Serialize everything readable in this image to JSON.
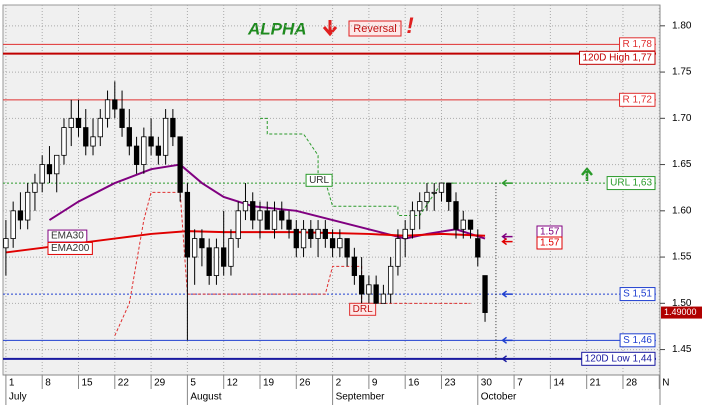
{
  "chart_data": {
    "type": "candlestick",
    "title": "ALPHA",
    "annotations": {
      "signal": "Reversal",
      "alert": "!"
    },
    "open": [
      1.56,
      1.57,
      1.6,
      1.59,
      1.62,
      1.63,
      1.65,
      1.64,
      1.66,
      1.69,
      1.7,
      1.69,
      1.67,
      1.68,
      1.7,
      1.72,
      1.71,
      1.69,
      1.67,
      1.65,
      1.68,
      1.67,
      1.66,
      1.7,
      1.68,
      1.62,
      1.55,
      1.57,
      1.56,
      1.53,
      1.56,
      1.54,
      1.57,
      1.6,
      1.61,
      1.59,
      1.6,
      1.58,
      1.6,
      1.59,
      1.58,
      1.56,
      1.58,
      1.57,
      1.58,
      1.57,
      1.56,
      1.57,
      1.55,
      1.53,
      1.51,
      1.52,
      1.5,
      1.51,
      1.54,
      1.57,
      1.58,
      1.6,
      1.61,
      1.62,
      1.62,
      1.63,
      1.61,
      1.58,
      1.59,
      1.57,
      1.53
    ],
    "high": [
      1.59,
      1.61,
      1.62,
      1.63,
      1.64,
      1.66,
      1.67,
      1.66,
      1.7,
      1.72,
      1.72,
      1.71,
      1.7,
      1.71,
      1.73,
      1.74,
      1.73,
      1.71,
      1.68,
      1.69,
      1.7,
      1.68,
      1.71,
      1.71,
      1.68,
      1.63,
      1.58,
      1.58,
      1.57,
      1.57,
      1.6,
      1.58,
      1.61,
      1.63,
      1.62,
      1.61,
      1.61,
      1.61,
      1.61,
      1.6,
      1.59,
      1.59,
      1.59,
      1.59,
      1.59,
      1.58,
      1.58,
      1.57,
      1.56,
      1.55,
      1.53,
      1.53,
      1.52,
      1.55,
      1.58,
      1.59,
      1.61,
      1.62,
      1.63,
      1.63,
      1.63,
      1.63,
      1.62,
      1.6,
      1.59,
      1.58,
      1.53
    ],
    "low": [
      1.53,
      1.56,
      1.58,
      1.58,
      1.6,
      1.62,
      1.63,
      1.62,
      1.65,
      1.67,
      1.68,
      1.66,
      1.66,
      1.67,
      1.69,
      1.7,
      1.68,
      1.66,
      1.64,
      1.64,
      1.66,
      1.65,
      1.65,
      1.67,
      1.61,
      1.46,
      1.52,
      1.54,
      1.52,
      1.52,
      1.53,
      1.53,
      1.56,
      1.59,
      1.58,
      1.57,
      1.58,
      1.57,
      1.58,
      1.57,
      1.55,
      1.55,
      1.56,
      1.55,
      1.56,
      1.55,
      1.55,
      1.54,
      1.52,
      1.5,
      1.5,
      1.5,
      1.5,
      1.5,
      1.53,
      1.55,
      1.57,
      1.58,
      1.6,
      1.6,
      1.61,
      1.6,
      1.57,
      1.57,
      1.57,
      1.54,
      1.48
    ],
    "close": [
      1.57,
      1.6,
      1.59,
      1.62,
      1.63,
      1.65,
      1.64,
      1.66,
      1.69,
      1.7,
      1.69,
      1.67,
      1.68,
      1.7,
      1.72,
      1.71,
      1.69,
      1.67,
      1.65,
      1.68,
      1.67,
      1.66,
      1.7,
      1.68,
      1.62,
      1.55,
      1.57,
      1.56,
      1.53,
      1.56,
      1.54,
      1.57,
      1.6,
      1.61,
      1.59,
      1.6,
      1.58,
      1.6,
      1.59,
      1.58,
      1.56,
      1.58,
      1.57,
      1.58,
      1.57,
      1.56,
      1.57,
      1.55,
      1.53,
      1.51,
      1.52,
      1.5,
      1.51,
      1.54,
      1.57,
      1.58,
      1.6,
      1.61,
      1.62,
      1.62,
      1.63,
      1.61,
      1.58,
      1.59,
      1.58,
      1.55,
      1.49
    ],
    "series": [
      {
        "name": "EMA30",
        "color": "#800080",
        "style": "solid",
        "end_value": 1.57,
        "x": [
          6,
          10,
          15,
          20,
          24,
          27,
          30,
          34,
          40,
          45,
          50,
          55,
          58,
          62,
          66
        ],
        "values": [
          1.59,
          1.61,
          1.63,
          1.645,
          1.65,
          1.63,
          1.615,
          1.605,
          1.6,
          1.59,
          1.58,
          1.57,
          1.575,
          1.58,
          1.57
        ]
      },
      {
        "name": "EMA200",
        "color": "#e00000",
        "style": "solid",
        "end_value": 1.57,
        "x": [
          0,
          5,
          10,
          15,
          20,
          25,
          30,
          40,
          50,
          55,
          60,
          66
        ],
        "values": [
          1.555,
          1.56,
          1.565,
          1.57,
          1.575,
          1.578,
          1.577,
          1.577,
          1.575,
          1.573,
          1.575,
          1.573
        ]
      },
      {
        "name": "URL",
        "color": "#2a9a2a",
        "style": "dashed",
        "x": [
          35,
          36,
          36,
          41,
          43,
          43,
          44,
          45,
          54,
          54,
          57,
          60,
          62
        ],
        "values": [
          1.7,
          1.7,
          1.683,
          1.683,
          1.66,
          1.632,
          1.632,
          1.605,
          1.605,
          1.595,
          1.595,
          1.63,
          1.63
        ]
      },
      {
        "name": "DRL",
        "color": "#e03030",
        "style": "dashed",
        "x": [
          15,
          17,
          19,
          20,
          24,
          25,
          44,
          45,
          49,
          49,
          64
        ],
        "values": [
          1.465,
          1.5,
          1.59,
          1.62,
          1.62,
          1.51,
          1.51,
          1.54,
          1.54,
          1.5,
          1.5
        ]
      }
    ],
    "levels": [
      {
        "label": "R 1,78",
        "value": 1.78,
        "color": "#e03030",
        "width": 1,
        "dash": false,
        "arrow": false
      },
      {
        "label": "120D High 1,77",
        "value": 1.77,
        "color": "#c00000",
        "width": 2,
        "dash": false,
        "arrow": false
      },
      {
        "label": "R 1,72",
        "value": 1.72,
        "color": "#e03030",
        "width": 1,
        "dash": false,
        "arrow": false
      },
      {
        "label": "URL 1,63",
        "value": 1.63,
        "color": "#2a9a2a",
        "width": 1,
        "dash": true,
        "arrow": true
      },
      {
        "label": "S 1,51",
        "value": 1.51,
        "color": "#2040d0",
        "width": 1,
        "dash": true,
        "arrow": true
      },
      {
        "label": "S 1,46",
        "value": 1.46,
        "color": "#2040d0",
        "width": 1,
        "dash": false,
        "arrow": true
      },
      {
        "label": "120D Low 1,44",
        "value": 1.44,
        "color": "#1a1aa0",
        "width": 2,
        "dash": false,
        "arrow": true
      }
    ],
    "last_price": {
      "value": 1.49,
      "label": "1.49000"
    },
    "xlim": [
      -0.4,
      90.1
    ],
    "xticks": [
      {
        "value": 0,
        "label": "1"
      },
      {
        "value": 5,
        "label": "8"
      },
      {
        "value": 10,
        "label": "15"
      },
      {
        "value": 15,
        "label": "22"
      },
      {
        "value": 20,
        "label": "29"
      },
      {
        "value": 25,
        "label": "5"
      },
      {
        "value": 30,
        "label": "12"
      },
      {
        "value": 35,
        "label": "19"
      },
      {
        "value": 40,
        "label": "26"
      },
      {
        "value": 45,
        "label": "2"
      },
      {
        "value": 50,
        "label": "9"
      },
      {
        "value": 55,
        "label": "16"
      },
      {
        "value": 60,
        "label": "23"
      },
      {
        "value": 65,
        "label": "30"
      },
      {
        "value": 70,
        "label": "7"
      },
      {
        "value": 75,
        "label": "14"
      },
      {
        "value": 80,
        "label": "21"
      },
      {
        "value": 85,
        "label": "28"
      },
      {
        "value": 90,
        "label": "N"
      }
    ],
    "month_ticks": [
      {
        "value": 0,
        "label": "July"
      },
      {
        "value": 25,
        "label": "August"
      },
      {
        "value": 45,
        "label": "September"
      },
      {
        "value": 65,
        "label": "October"
      }
    ],
    "ylim": [
      1.4225,
      1.8225
    ],
    "yticks": [
      1.45,
      {
        "value": 1.5,
        "label": "1.50"
      },
      1.55,
      {
        "value": 1.6,
        "label": "1.60"
      },
      1.65,
      {
        "value": 1.7,
        "label": "1.70"
      },
      1.75,
      {
        "value": 1.8,
        "label": "1.80"
      }
    ],
    "grid": true
  }
}
